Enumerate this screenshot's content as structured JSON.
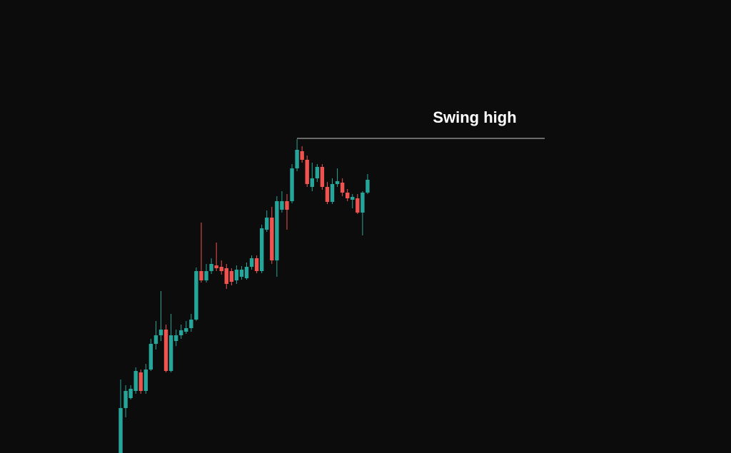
{
  "chart_data": {
    "type": "candlestick",
    "ylim": [
      0,
      635
    ],
    "up_color": "#26a69a",
    "down_color": "#ef5350",
    "open": [
      0,
      63,
      77,
      87,
      113,
      87,
      117,
      153,
      165,
      173,
      115,
      157,
      165,
      170,
      175,
      187,
      255,
      242,
      255,
      263,
      261,
      259,
      255,
      242,
      247,
      245,
      261,
      273,
      255,
      313,
      330,
      270,
      341,
      353,
      353,
      399,
      423,
      411,
      373,
      385,
      401,
      373,
      352,
      377,
      379,
      365,
      355,
      357,
      337,
      365
    ],
    "high": [
      103,
      95,
      95,
      120,
      117,
      125,
      160,
      185,
      227,
      180,
      195,
      173,
      180,
      185,
      195,
      260,
      323,
      265,
      273,
      295,
      270,
      265,
      259,
      263,
      262,
      267,
      277,
      277,
      320,
      340,
      345,
      360,
      367,
      363,
      405,
      440,
      430,
      417,
      407,
      405,
      405,
      380,
      385,
      399,
      385,
      370,
      363,
      363,
      367,
      391
    ],
    "low": [
      0,
      50,
      75,
      83,
      83,
      83,
      115,
      145,
      157,
      113,
      113,
      150,
      160,
      167,
      170,
      185,
      239,
      239,
      251,
      255,
      250,
      230,
      235,
      237,
      243,
      243,
      257,
      252,
      252,
      310,
      265,
      247,
      337,
      313,
      350,
      395,
      407,
      373,
      367,
      380,
      369,
      349,
      349,
      373,
      360,
      353,
      343,
      335,
      305,
      363
    ],
    "close": [
      63,
      87,
      90,
      115,
      87,
      117,
      153,
      165,
      173,
      115,
      165,
      165,
      172,
      175,
      187,
      255,
      242,
      255,
      265,
      259,
      255,
      237,
      240,
      257,
      257,
      261,
      273,
      255,
      315,
      330,
      270,
      353,
      353,
      341,
      399,
      425,
      411,
      377,
      385,
      401,
      373,
      352,
      377,
      381,
      365,
      357,
      359,
      337,
      365,
      383
    ],
    "annotations": [
      {
        "text": "Swing high",
        "value": 441,
        "color": "#c8c8c8"
      }
    ]
  }
}
